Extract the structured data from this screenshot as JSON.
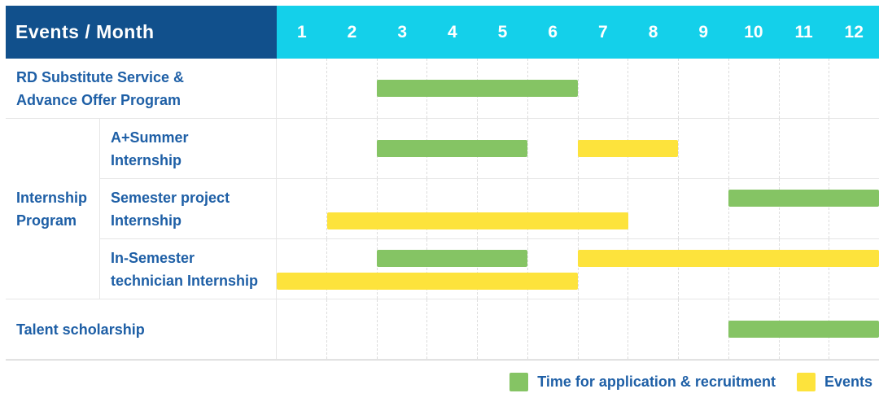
{
  "header": {
    "title": "Events / Month",
    "months": [
      "1",
      "2",
      "3",
      "4",
      "5",
      "6",
      "7",
      "8",
      "9",
      "10",
      "11",
      "12"
    ]
  },
  "colors": {
    "header_bg": "#11508C",
    "months_bg": "#14D0EA",
    "green": "#85C464",
    "yellow": "#FDE33C",
    "label_text": "#1E5FA6",
    "grid_line": "#E6E6E6"
  },
  "group": {
    "label_lines": [
      "Internship",
      "Program"
    ],
    "row_start": 1,
    "row_count": 3
  },
  "rows": [
    {
      "label_lines": [
        "RD Substitute Service &",
        "Advance Offer Program"
      ],
      "grouped": false,
      "bar_lines": [
        [
          {
            "color": "green",
            "start_month": 3,
            "end_month": 6
          }
        ]
      ]
    },
    {
      "label_lines": [
        "A+Summer",
        "Internship"
      ],
      "grouped": true,
      "bar_lines": [
        [
          {
            "color": "green",
            "start_month": 3,
            "end_month": 5
          },
          {
            "color": "yellow",
            "start_month": 7,
            "end_month": 8
          }
        ]
      ]
    },
    {
      "label_lines": [
        "Semester project",
        "Internship"
      ],
      "grouped": true,
      "bar_lines": [
        [
          {
            "color": "green",
            "start_month": 10,
            "end_month": 12
          }
        ],
        [
          {
            "color": "yellow",
            "start_month": 2,
            "end_month": 7
          }
        ]
      ]
    },
    {
      "label_lines": [
        "In-Semester",
        "technician Internship"
      ],
      "grouped": true,
      "bar_lines": [
        [
          {
            "color": "green",
            "start_month": 3,
            "end_month": 5
          },
          {
            "color": "yellow",
            "start_month": 7,
            "end_month": 12
          }
        ],
        [
          {
            "color": "yellow",
            "start_month": 1,
            "end_month": 6
          }
        ]
      ]
    },
    {
      "label_lines": [
        "Talent scholarship"
      ],
      "grouped": false,
      "bar_lines": [
        [
          {
            "color": "green",
            "start_month": 10,
            "end_month": 12
          }
        ]
      ]
    }
  ],
  "legend": [
    {
      "label": "Time for application & recruitment",
      "color_key": "green"
    },
    {
      "label": "Events",
      "color_key": "yellow"
    }
  ],
  "chart_data": {
    "type": "bar",
    "subtype": "gantt",
    "title": "Events / Month",
    "x_label": "Month",
    "x_ticks": [
      1,
      2,
      3,
      4,
      5,
      6,
      7,
      8,
      9,
      10,
      11,
      12
    ],
    "x_range": [
      1,
      12
    ],
    "row_labels": [
      "RD Substitute Service & Advance Offer Program",
      "Internship Program / A+Summer Internship",
      "Internship Program / Semester project Internship",
      "Internship Program / In-Semester technician Internship",
      "Talent scholarship"
    ],
    "series": [
      {
        "name": "Time for application & recruitment",
        "color": "#85C464",
        "segments": [
          {
            "row": "RD Substitute Service & Advance Offer Program",
            "start_month": 3,
            "end_month": 6
          },
          {
            "row": "A+Summer Internship",
            "start_month": 3,
            "end_month": 5
          },
          {
            "row": "Semester project Internship",
            "start_month": 10,
            "end_month": 12
          },
          {
            "row": "In-Semester technician Internship",
            "start_month": 3,
            "end_month": 5
          },
          {
            "row": "Talent scholarship",
            "start_month": 10,
            "end_month": 12
          }
        ]
      },
      {
        "name": "Events",
        "color": "#FDE33C",
        "segments": [
          {
            "row": "A+Summer Internship",
            "start_month": 7,
            "end_month": 8
          },
          {
            "row": "Semester project Internship",
            "start_month": 2,
            "end_month": 7
          },
          {
            "row": "In-Semester technician Internship",
            "start_month": 7,
            "end_month": 12
          },
          {
            "row": "In-Semester technician Internship",
            "start_month": 1,
            "end_month": 6
          }
        ]
      }
    ],
    "legend_position": "bottom-right",
    "grid": "dashed-vertical-month-lines"
  }
}
